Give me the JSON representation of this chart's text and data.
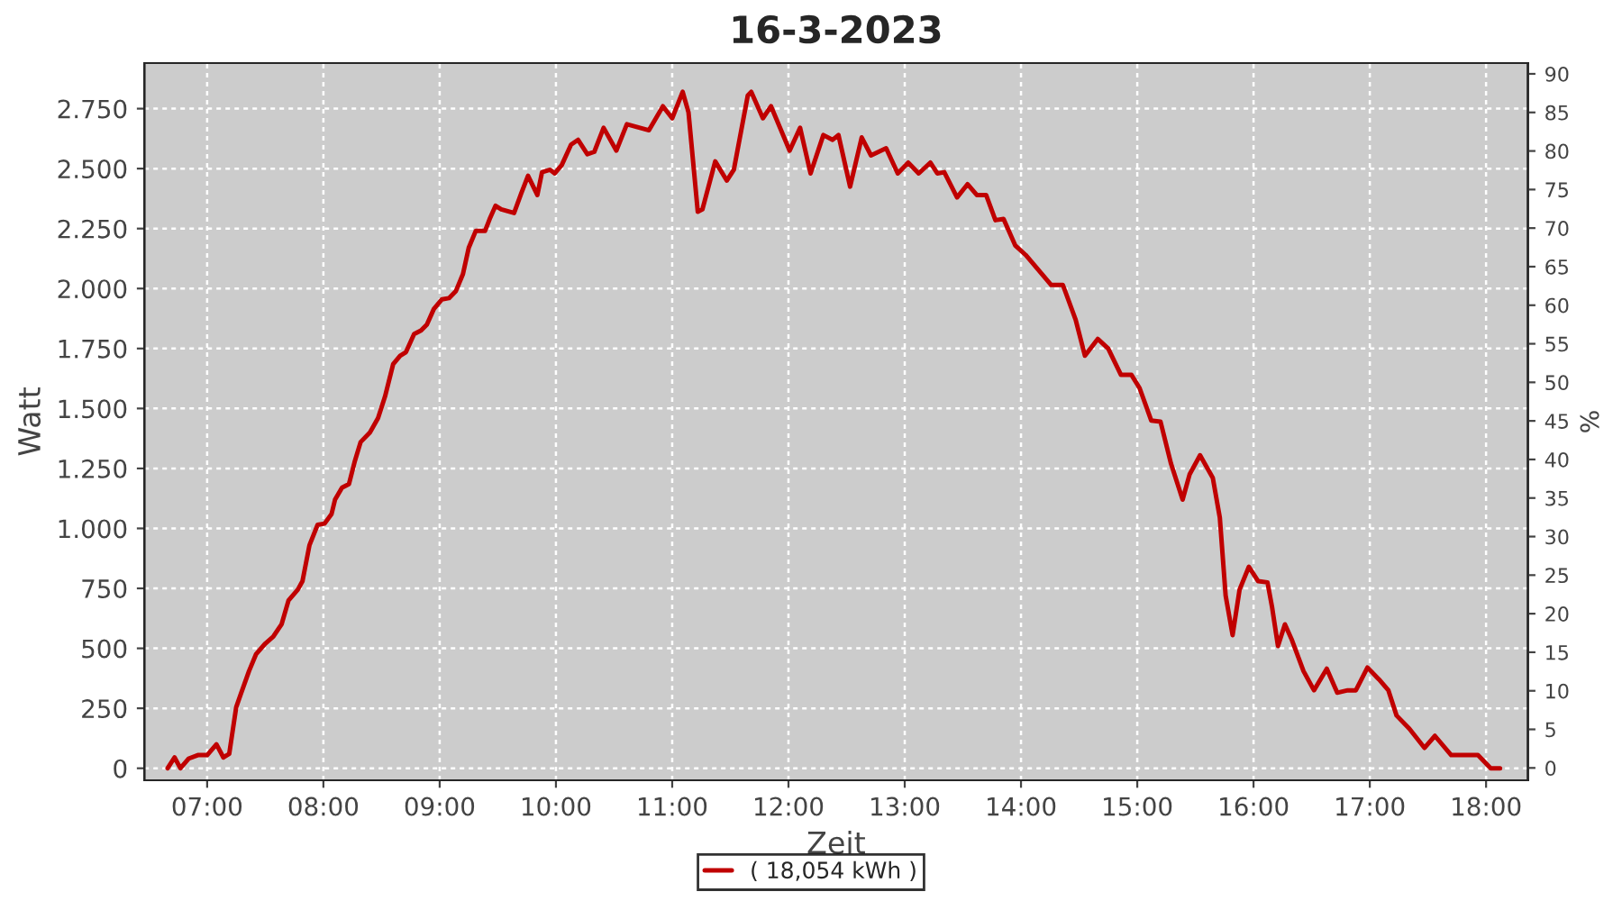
{
  "chart_data": {
    "type": "line",
    "title": "16-3-2023",
    "xlabel": "Zeit",
    "ylabel": "Watt",
    "y2label": "%",
    "x": [
      6.66,
      6.72,
      6.77,
      6.84,
      6.92,
      7.0,
      7.08,
      7.14,
      7.19,
      7.25,
      7.29,
      7.36,
      7.42,
      7.5,
      7.57,
      7.64,
      7.7,
      7.78,
      7.82,
      7.88,
      7.95,
      8.01,
      8.07,
      8.1,
      8.16,
      8.22,
      8.27,
      8.32,
      8.4,
      8.47,
      8.53,
      8.6,
      8.66,
      8.71,
      8.78,
      8.84,
      8.89,
      8.95,
      9.02,
      9.08,
      9.14,
      9.2,
      9.25,
      9.31,
      9.39,
      9.43,
      9.48,
      9.53,
      9.64,
      9.7,
      9.76,
      9.84,
      9.88,
      9.95,
      9.99,
      10.05,
      10.13,
      10.19,
      10.27,
      10.33,
      10.41,
      10.52,
      10.61,
      10.8,
      10.92,
      11.0,
      11.09,
      11.14,
      11.22,
      11.26,
      11.37,
      11.47,
      11.53,
      11.65,
      11.68,
      11.78,
      11.85,
      12.01,
      12.1,
      12.19,
      12.3,
      12.38,
      12.43,
      12.53,
      12.63,
      12.71,
      12.84,
      12.94,
      13.03,
      13.12,
      13.22,
      13.28,
      13.34,
      13.45,
      13.54,
      13.62,
      13.7,
      13.78,
      13.85,
      13.95,
      14.04,
      14.26,
      14.36,
      14.47,
      14.55,
      14.66,
      14.75,
      14.86,
      14.95,
      15.02,
      15.12,
      15.2,
      15.29,
      15.39,
      15.45,
      15.54,
      15.65,
      15.71,
      15.76,
      15.82,
      15.88,
      15.96,
      16.04,
      16.12,
      16.16,
      16.21,
      16.27,
      16.33,
      16.43,
      16.52,
      16.63,
      16.72,
      16.81,
      16.88,
      16.98,
      17.08,
      17.16,
      17.23,
      17.34,
      17.47,
      17.56,
      17.7,
      17.93,
      18.04,
      18.12
    ],
    "series": [
      {
        "name": "( 18,054 kWh )",
        "color": "#c00000",
        "values": [
          0,
          45,
          0,
          40,
          55,
          55,
          100,
          45,
          60,
          255,
          310,
          405,
          475,
          520,
          550,
          600,
          700,
          745,
          780,
          930,
          1015,
          1020,
          1060,
          1120,
          1170,
          1185,
          1280,
          1360,
          1400,
          1460,
          1550,
          1685,
          1720,
          1735,
          1810,
          1825,
          1850,
          1915,
          1955,
          1960,
          1990,
          2060,
          2170,
          2240,
          2240,
          2290,
          2345,
          2330,
          2315,
          2395,
          2470,
          2390,
          2485,
          2495,
          2480,
          2515,
          2600,
          2620,
          2560,
          2570,
          2670,
          2575,
          2685,
          2660,
          2760,
          2710,
          2820,
          2735,
          2320,
          2330,
          2530,
          2450,
          2495,
          2805,
          2820,
          2710,
          2760,
          2575,
          2670,
          2480,
          2640,
          2620,
          2640,
          2425,
          2630,
          2555,
          2585,
          2480,
          2525,
          2480,
          2525,
          2480,
          2485,
          2380,
          2435,
          2390,
          2390,
          2285,
          2290,
          2180,
          2140,
          2015,
          2015,
          1870,
          1720,
          1790,
          1750,
          1640,
          1640,
          1585,
          1450,
          1445,
          1270,
          1120,
          1225,
          1305,
          1210,
          1045,
          720,
          555,
          745,
          840,
          780,
          775,
          670,
          510,
          600,
          535,
          405,
          325,
          415,
          315,
          325,
          325,
          420,
          370,
          325,
          220,
          165,
          85,
          135,
          55,
          55,
          0,
          0
        ]
      }
    ],
    "xlim": [
      6.46,
      18.36
    ],
    "xticks": [
      {
        "value": 7,
        "label": "07:00"
      },
      {
        "value": 8,
        "label": "08:00"
      },
      {
        "value": 9,
        "label": "09:00"
      },
      {
        "value": 10,
        "label": "10:00"
      },
      {
        "value": 11,
        "label": "11:00"
      },
      {
        "value": 12,
        "label": "12:00"
      },
      {
        "value": 13,
        "label": "13:00"
      },
      {
        "value": 14,
        "label": "14:00"
      },
      {
        "value": 15,
        "label": "15:00"
      },
      {
        "value": 16,
        "label": "16:00"
      },
      {
        "value": 17,
        "label": "17:00"
      },
      {
        "value": 18,
        "label": "18:00"
      }
    ],
    "ylim": [
      -50,
      2940
    ],
    "yticks": [
      0,
      {
        "value": 250,
        "label": "250"
      },
      {
        "value": 500,
        "label": "500"
      },
      {
        "value": 750,
        "label": "750"
      },
      {
        "value": 1000,
        "label": "1.000"
      },
      {
        "value": 1250,
        "label": "1.250"
      },
      {
        "value": 1500,
        "label": "1.500"
      },
      {
        "value": 1750,
        "label": "1.750"
      },
      {
        "value": 2000,
        "label": "2.000"
      },
      {
        "value": 2250,
        "label": "2.250"
      },
      {
        "value": 2500,
        "label": "2.500"
      },
      {
        "value": 2750,
        "label": "2.750"
      }
    ],
    "y2lim": [
      -1.6,
      91.4
    ],
    "y2ticks": [
      0,
      5,
      10,
      15,
      20,
      25,
      30,
      35,
      40,
      45,
      50,
      55,
      60,
      65,
      70,
      75,
      80,
      85,
      90
    ],
    "grid": true,
    "legend": "bottom",
    "line_style": "solid",
    "marker": "none"
  }
}
